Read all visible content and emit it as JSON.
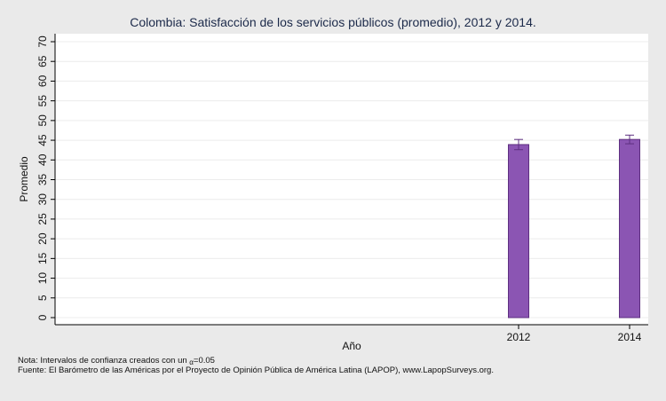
{
  "chart_data": {
    "type": "bar",
    "title": "Colombia: Satisfacción de los servicios públicos (promedio), 2012 y 2014.",
    "xlabel": "Año",
    "ylabel": "Promedio",
    "categories": [
      "2012",
      "2014"
    ],
    "values": [
      43.9,
      45.2
    ],
    "ci_low": [
      42.6,
      44.1
    ],
    "ci_high": [
      45.2,
      46.3
    ],
    "ylim": [
      0,
      70
    ],
    "yticks": [
      "0",
      "5",
      "10",
      "15",
      "20",
      "25",
      "30",
      "35",
      "40",
      "45",
      "50",
      "55",
      "60",
      "65",
      "70"
    ],
    "grid": true,
    "bar_color": "#8b55b3",
    "bar_edge_color": "#5e2f80",
    "errorbar_color": "#5e2f80"
  },
  "notes": {
    "note_prefix": "Nota: Intervalos de confianza creados con un ",
    "note_symbol": "α",
    "note_suffix": "=0.05",
    "source": "Fuente: El Barómetro de las Américas por el Proyecto de Opinión Pública de América Latina (LAPOP), www.LapopSurveys.org."
  }
}
